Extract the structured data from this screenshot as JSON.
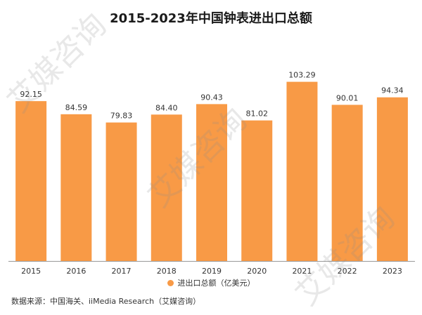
{
  "chart_data": {
    "type": "bar",
    "title": "2015-2023年中国钟表进出口总额",
    "categories": [
      "2015",
      "2016",
      "2017",
      "2018",
      "2019",
      "2020",
      "2021",
      "2022",
      "2023"
    ],
    "series": [
      {
        "name": "进出口总额（亿美元）",
        "values": [
          92.15,
          84.59,
          79.83,
          84.4,
          90.43,
          81.02,
          103.29,
          90.01,
          94.34
        ],
        "labels": [
          "92.15",
          "84.59",
          "79.83",
          "84.40",
          "90.43",
          "81.02",
          "103.29",
          "90.01",
          "94.34"
        ]
      }
    ],
    "ylim": [
      0,
      110
    ],
    "grid": false,
    "legend": "bottom",
    "bar_color": "#F89A46"
  },
  "source": "数据来源：中国海关、iiMedia Research（艾媒咨询）",
  "watermark": "艾媒咨询"
}
